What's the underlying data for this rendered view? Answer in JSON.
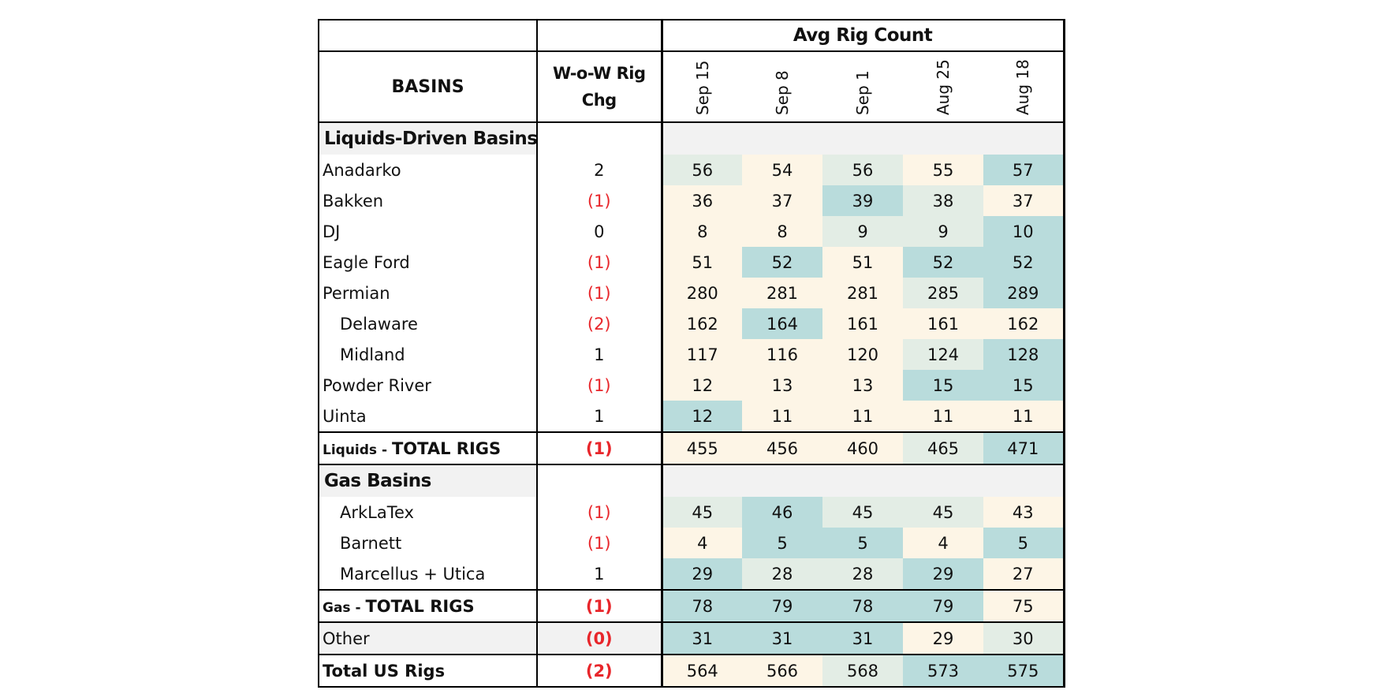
{
  "table": {
    "group_header": "Avg Rig Count",
    "basins_header": "BASINS",
    "wow_header": "W-o-W Rig Chg",
    "weeks": [
      "Sep 15",
      "Sep 8",
      "Sep 1",
      "Aug 25",
      "Aug 18"
    ],
    "heat_colors": {
      "light": "#fdf5e6",
      "mid": "#e3ede5",
      "dark": "#b9dcdc"
    },
    "sections": [
      {
        "title": "Liquids-Driven Basins",
        "rows": [
          {
            "name": "Anadarko",
            "indent": false,
            "wow": "2",
            "values": [
              "56",
              "54",
              "56",
              "55",
              "57"
            ]
          },
          {
            "name": "Bakken",
            "indent": false,
            "wow": "(1)",
            "values": [
              "36",
              "37",
              "39",
              "38",
              "37"
            ]
          },
          {
            "name": "DJ",
            "indent": false,
            "wow": "0",
            "values": [
              "8",
              "8",
              "9",
              "9",
              "10"
            ]
          },
          {
            "name": "Eagle Ford",
            "indent": false,
            "wow": "(1)",
            "values": [
              "51",
              "52",
              "51",
              "52",
              "52"
            ]
          },
          {
            "name": "Permian",
            "indent": false,
            "wow": "(1)",
            "values": [
              "280",
              "281",
              "281",
              "285",
              "289"
            ]
          },
          {
            "name": "Delaware",
            "indent": true,
            "wow": "(2)",
            "values": [
              "162",
              "164",
              "161",
              "161",
              "162"
            ]
          },
          {
            "name": "Midland",
            "indent": true,
            "wow": "1",
            "values": [
              "117",
              "116",
              "120",
              "124",
              "128"
            ]
          },
          {
            "name": "Powder River",
            "indent": false,
            "wow": "(1)",
            "values": [
              "12",
              "13",
              "13",
              "15",
              "15"
            ]
          },
          {
            "name": "Uinta",
            "indent": false,
            "wow": "1",
            "values": [
              "12",
              "11",
              "11",
              "11",
              "11"
            ]
          }
        ],
        "total": {
          "prefix": "Liquids - ",
          "label": "TOTAL RIGS",
          "wow": "(1)",
          "values": [
            "455",
            "456",
            "460",
            "465",
            "471"
          ]
        }
      },
      {
        "title": "Gas Basins",
        "rows": [
          {
            "name": "ArkLaTex",
            "indent": true,
            "wow": "(1)",
            "values": [
              "45",
              "46",
              "45",
              "45",
              "43"
            ]
          },
          {
            "name": "Barnett",
            "indent": true,
            "wow": "(1)",
            "values": [
              "4",
              "5",
              "5",
              "4",
              "5"
            ]
          },
          {
            "name": "Marcellus + Utica",
            "indent": true,
            "wow": "1",
            "values": [
              "29",
              "28",
              "28",
              "29",
              "27"
            ]
          }
        ],
        "total": {
          "prefix": "Gas - ",
          "label": "TOTAL RIGS",
          "wow": "(1)",
          "values": [
            "78",
            "79",
            "78",
            "79",
            "75"
          ]
        }
      }
    ],
    "other": {
      "name": "Other",
      "wow": "(0)",
      "values": [
        "31",
        "31",
        "31",
        "29",
        "30"
      ]
    },
    "grand_total": {
      "name": "Total US Rigs",
      "wow": "(2)",
      "values": [
        "564",
        "566",
        "568",
        "573",
        "575"
      ]
    }
  }
}
